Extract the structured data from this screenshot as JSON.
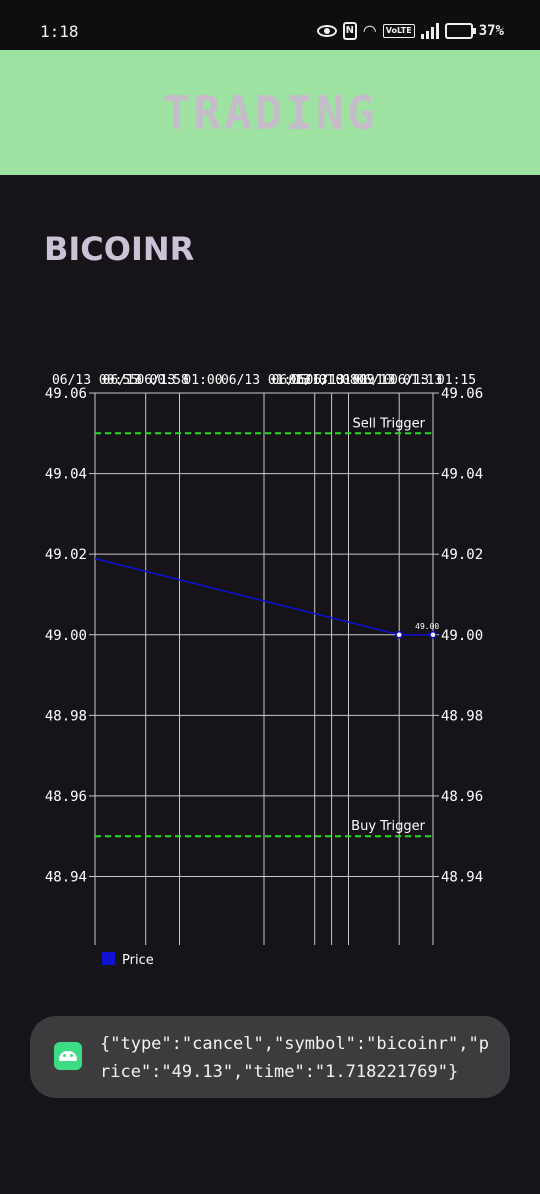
{
  "status_bar": {
    "time": "1:18",
    "volte": "VoLTE",
    "battery_level": "37%"
  },
  "app_bar": {
    "title": "TRADING"
  },
  "symbol": {
    "name": "BICOINR"
  },
  "chart_data": {
    "type": "line",
    "x_ticks": [
      "06/13 00:55",
      "06/13 00:58",
      "06/13 01:00",
      "06/13 01:05",
      "06/13 01:08",
      "06/13 01:09",
      "06/13 01:10",
      "06/13 01:13",
      "06/13 01:15"
    ],
    "x_tick_positions_min": [
      0,
      3,
      5,
      10,
      13,
      14,
      15,
      18,
      20
    ],
    "y_ticks": [
      49.06,
      49.04,
      49.02,
      49.0,
      48.98,
      48.96,
      48.94
    ],
    "ylim": [
      48.923,
      49.06
    ],
    "series": [
      {
        "name": "Price",
        "color": "#1010d0",
        "x_min": [
          -2,
          18,
          20
        ],
        "values": [
          49.021,
          49.0,
          49.0
        ]
      }
    ],
    "data_labels": [
      {
        "series": 0,
        "index": 1,
        "text": "49.00"
      }
    ],
    "reference_lines": [
      {
        "label": "Sell Trigger",
        "value": 49.05,
        "color": "#22dd22"
      },
      {
        "label": "Buy Trigger",
        "value": 48.95,
        "color": "#22dd22"
      }
    ],
    "grid": true,
    "legend": "bottom-left"
  },
  "toast": {
    "message": "{\"type\":\"cancel\",\"symbol\":\"bicoinr\",\"price\":\"49.13\",\"time\":\"1.718221769\"}"
  },
  "icons": [
    "eye-icon",
    "nfc-icon",
    "wifi-icon",
    "signal-icon",
    "battery-icon",
    "android-icon"
  ]
}
